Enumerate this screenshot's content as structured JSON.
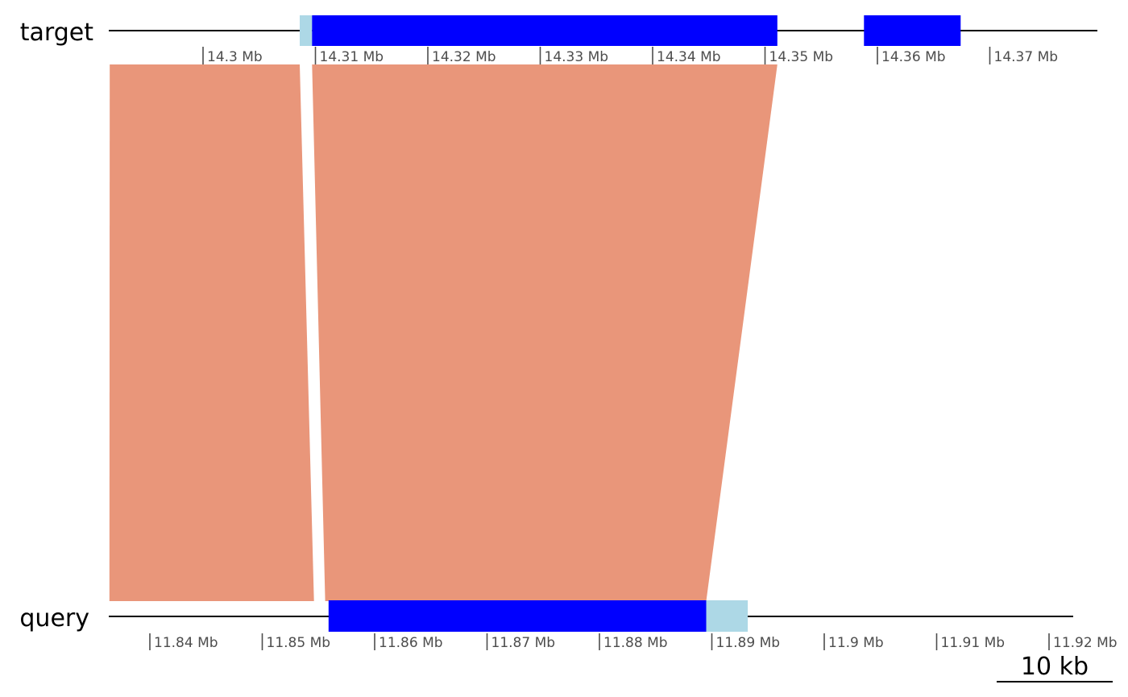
{
  "chart_data": {
    "type": "synteny",
    "tracks": {
      "target": {
        "label": "target",
        "ticks": [
          "14.3 Mb",
          "14.31 Mb",
          "14.32 Mb",
          "14.33 Mb",
          "14.34 Mb",
          "14.35 Mb",
          "14.36 Mb",
          "14.37 Mb"
        ],
        "features": [
          {
            "name": "target-light-segment",
            "start_mb": 14.3086,
            "end_mb": 14.3097,
            "color": "#add8e6"
          },
          {
            "name": "target-blue-block-1",
            "start_mb": 14.3097,
            "end_mb": 14.3511,
            "color": "#0000ff"
          },
          {
            "name": "target-blue-block-2",
            "start_mb": 14.3588,
            "end_mb": 14.3674,
            "color": "#0000ff"
          }
        ]
      },
      "query": {
        "label": "query",
        "ticks": [
          "11.84 Mb",
          "11.85 Mb",
          "11.86 Mb",
          "11.87 Mb",
          "11.88 Mb",
          "11.89 Mb",
          "11.9 Mb",
          "11.91 Mb",
          "11.92 Mb"
        ],
        "features": [
          {
            "name": "query-blue-block",
            "start_mb": 11.8559,
            "end_mb": 11.8895,
            "color": "#0000ff"
          },
          {
            "name": "query-light-segment",
            "start_mb": 11.8895,
            "end_mb": 11.8932,
            "color": "#add8e6"
          }
        ]
      }
    },
    "alignments": [
      {
        "name": "alignment-left",
        "target_mb": [
          14.2917,
          14.3086
        ],
        "query_mb": [
          11.8364,
          11.8546
        ],
        "color": "#e9967a"
      },
      {
        "name": "alignment-right",
        "target_mb": [
          14.3097,
          14.3511
        ],
        "query_mb": [
          11.8556,
          11.8895
        ],
        "color": "#e9967a"
      }
    ],
    "scale_bar": {
      "label": "10 kb",
      "length_kb": 10
    },
    "colors": {
      "block": "#0000ff",
      "light_block": "#add8e6",
      "alignment": "#e9967a",
      "axis_text": "#4d4d4d",
      "axis_line": "#000000"
    }
  }
}
